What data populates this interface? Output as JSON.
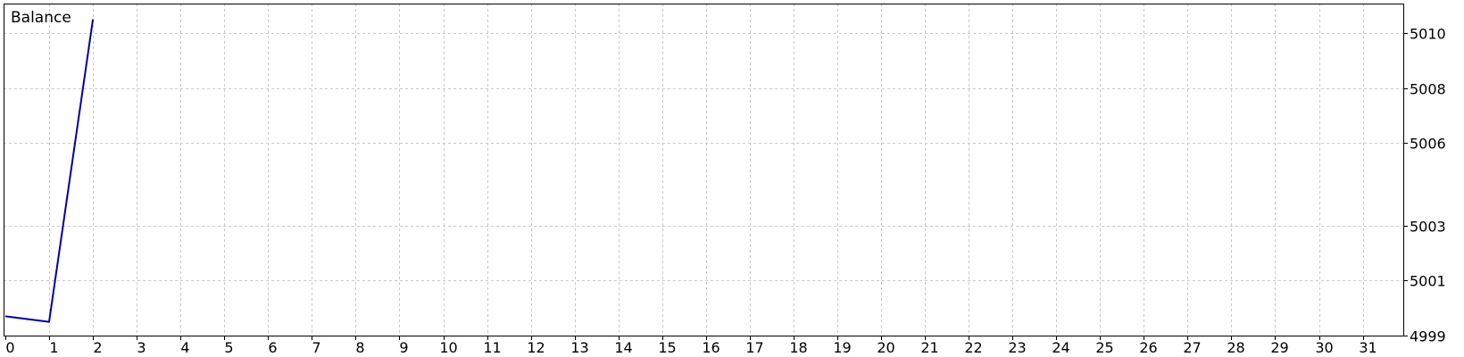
{
  "chart_data": {
    "type": "line",
    "title": "Balance",
    "xlabel": "",
    "ylabel": "",
    "x_ticks": [
      0,
      1,
      2,
      3,
      4,
      5,
      6,
      7,
      8,
      9,
      10,
      11,
      12,
      13,
      14,
      15,
      16,
      17,
      18,
      19,
      20,
      21,
      22,
      23,
      24,
      25,
      26,
      27,
      28,
      29,
      30,
      31
    ],
    "y_ticks": [
      4999,
      5001,
      5003,
      5006,
      5008,
      5010
    ],
    "xlim": [
      0,
      32
    ],
    "ylim": [
      4999,
      5011.07
    ],
    "grid": true,
    "series": [
      {
        "x": [
          0,
          1,
          2
        ],
        "y": [
          4999.7,
          4999.5,
          5010.5
        ],
        "color": "#0000a0"
      }
    ]
  }
}
